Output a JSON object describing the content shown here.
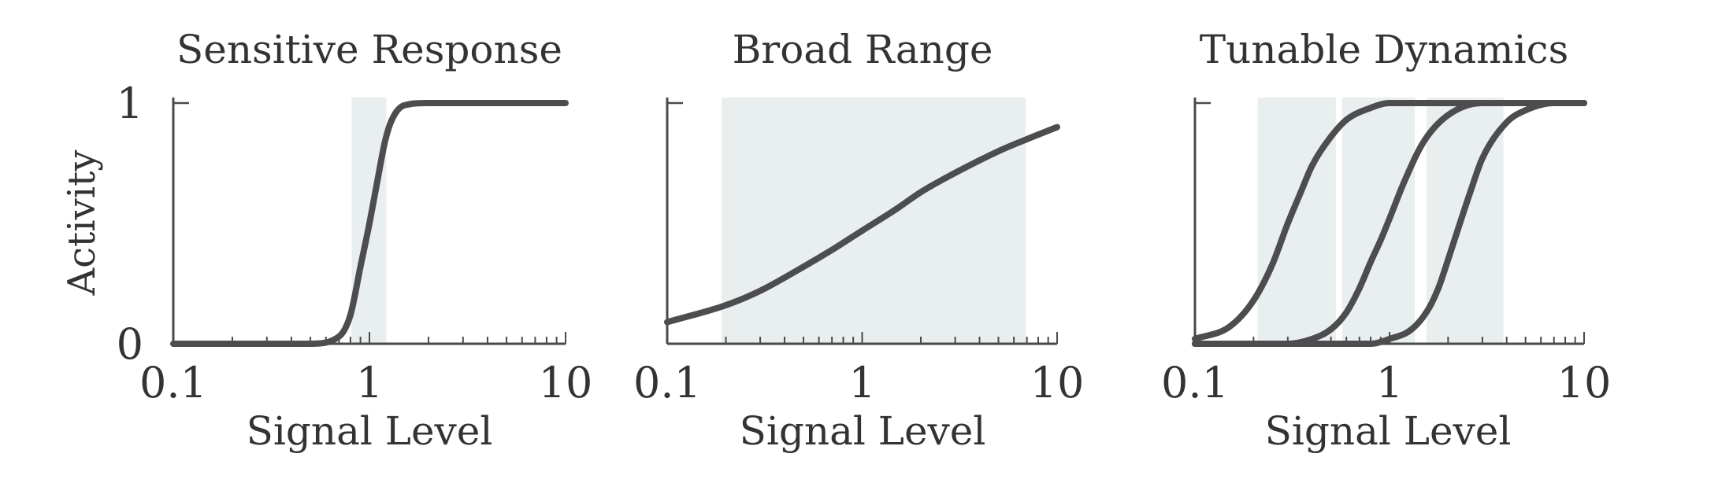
{
  "figure": {
    "ylabel": "Activity",
    "colors": {
      "curve": "#4d4d4f",
      "band": "#e9eeef",
      "axis": "#4a4a4a",
      "text": "#333333"
    }
  },
  "chart_data": [
    {
      "type": "line",
      "title": "Sensitive Response",
      "xlabel": "Signal Level",
      "ylabel": "Activity",
      "xscale": "log",
      "xlim": [
        0.1,
        10
      ],
      "ylim": [
        0,
        1
      ],
      "xticks": [
        "0.1",
        "1",
        "10"
      ],
      "yticks": [
        "0",
        "1"
      ],
      "shaded_ranges": [
        [
          0.81,
          1.22
        ]
      ],
      "series": [
        {
          "x": [
            0.1,
            0.5,
            0.7,
            0.8,
            0.9,
            1.0,
            1.1,
            1.2,
            1.3,
            1.5,
            2,
            10
          ],
          "y": [
            0.0,
            0.0,
            0.03,
            0.12,
            0.32,
            0.5,
            0.68,
            0.84,
            0.93,
            0.99,
            1.0,
            1.0
          ]
        }
      ]
    },
    {
      "type": "line",
      "title": "Broad Range",
      "xlabel": "Signal Level",
      "xscale": "log",
      "xlim": [
        0.1,
        10
      ],
      "ylim": [
        0,
        1
      ],
      "xticks": [
        "0.1",
        "1",
        "10"
      ],
      "yticks": [
        "",
        ""
      ],
      "shaded_ranges": [
        [
          0.19,
          6.9
        ]
      ],
      "series": [
        {
          "x": [
            0.1,
            0.2,
            0.3,
            0.5,
            0.7,
            1,
            1.5,
            2,
            3,
            5,
            7,
            10
          ],
          "y": [
            0.09,
            0.16,
            0.22,
            0.32,
            0.39,
            0.47,
            0.56,
            0.63,
            0.71,
            0.8,
            0.85,
            0.9
          ]
        }
      ]
    },
    {
      "type": "line",
      "title": "Tunable Dynamics",
      "xlabel": "Signal Level",
      "xscale": "log",
      "xlim": [
        0.1,
        10
      ],
      "ylim": [
        0,
        1
      ],
      "xticks": [
        "0.1",
        "1",
        "10"
      ],
      "yticks": [
        "",
        ""
      ],
      "shaded_ranges": [
        [
          0.21,
          0.53
        ],
        [
          0.57,
          1.35
        ],
        [
          1.55,
          3.85
        ]
      ],
      "series": [
        {
          "x": [
            0.1,
            0.15,
            0.2,
            0.25,
            0.3,
            0.35,
            0.4,
            0.5,
            0.6,
            0.8,
            1,
            2,
            10
          ],
          "y": [
            0.02,
            0.07,
            0.18,
            0.33,
            0.5,
            0.63,
            0.74,
            0.86,
            0.93,
            0.98,
            1.0,
            1.0,
            1.0
          ]
        },
        {
          "x": [
            0.1,
            0.3,
            0.4,
            0.5,
            0.6,
            0.7,
            0.8,
            0.9,
            1.0,
            1.2,
            1.5,
            2,
            3,
            10
          ],
          "y": [
            0.0,
            0.0,
            0.02,
            0.06,
            0.13,
            0.23,
            0.34,
            0.43,
            0.52,
            0.68,
            0.84,
            0.95,
            1.0,
            1.0
          ]
        },
        {
          "x": [
            0.1,
            0.8,
            1,
            1.3,
            1.6,
            1.8,
            2,
            2.3,
            2.6,
            3,
            4,
            5,
            7,
            10
          ],
          "y": [
            0.0,
            0.0,
            0.02,
            0.06,
            0.15,
            0.24,
            0.35,
            0.5,
            0.63,
            0.77,
            0.92,
            0.97,
            1.0,
            1.0
          ]
        }
      ]
    }
  ]
}
